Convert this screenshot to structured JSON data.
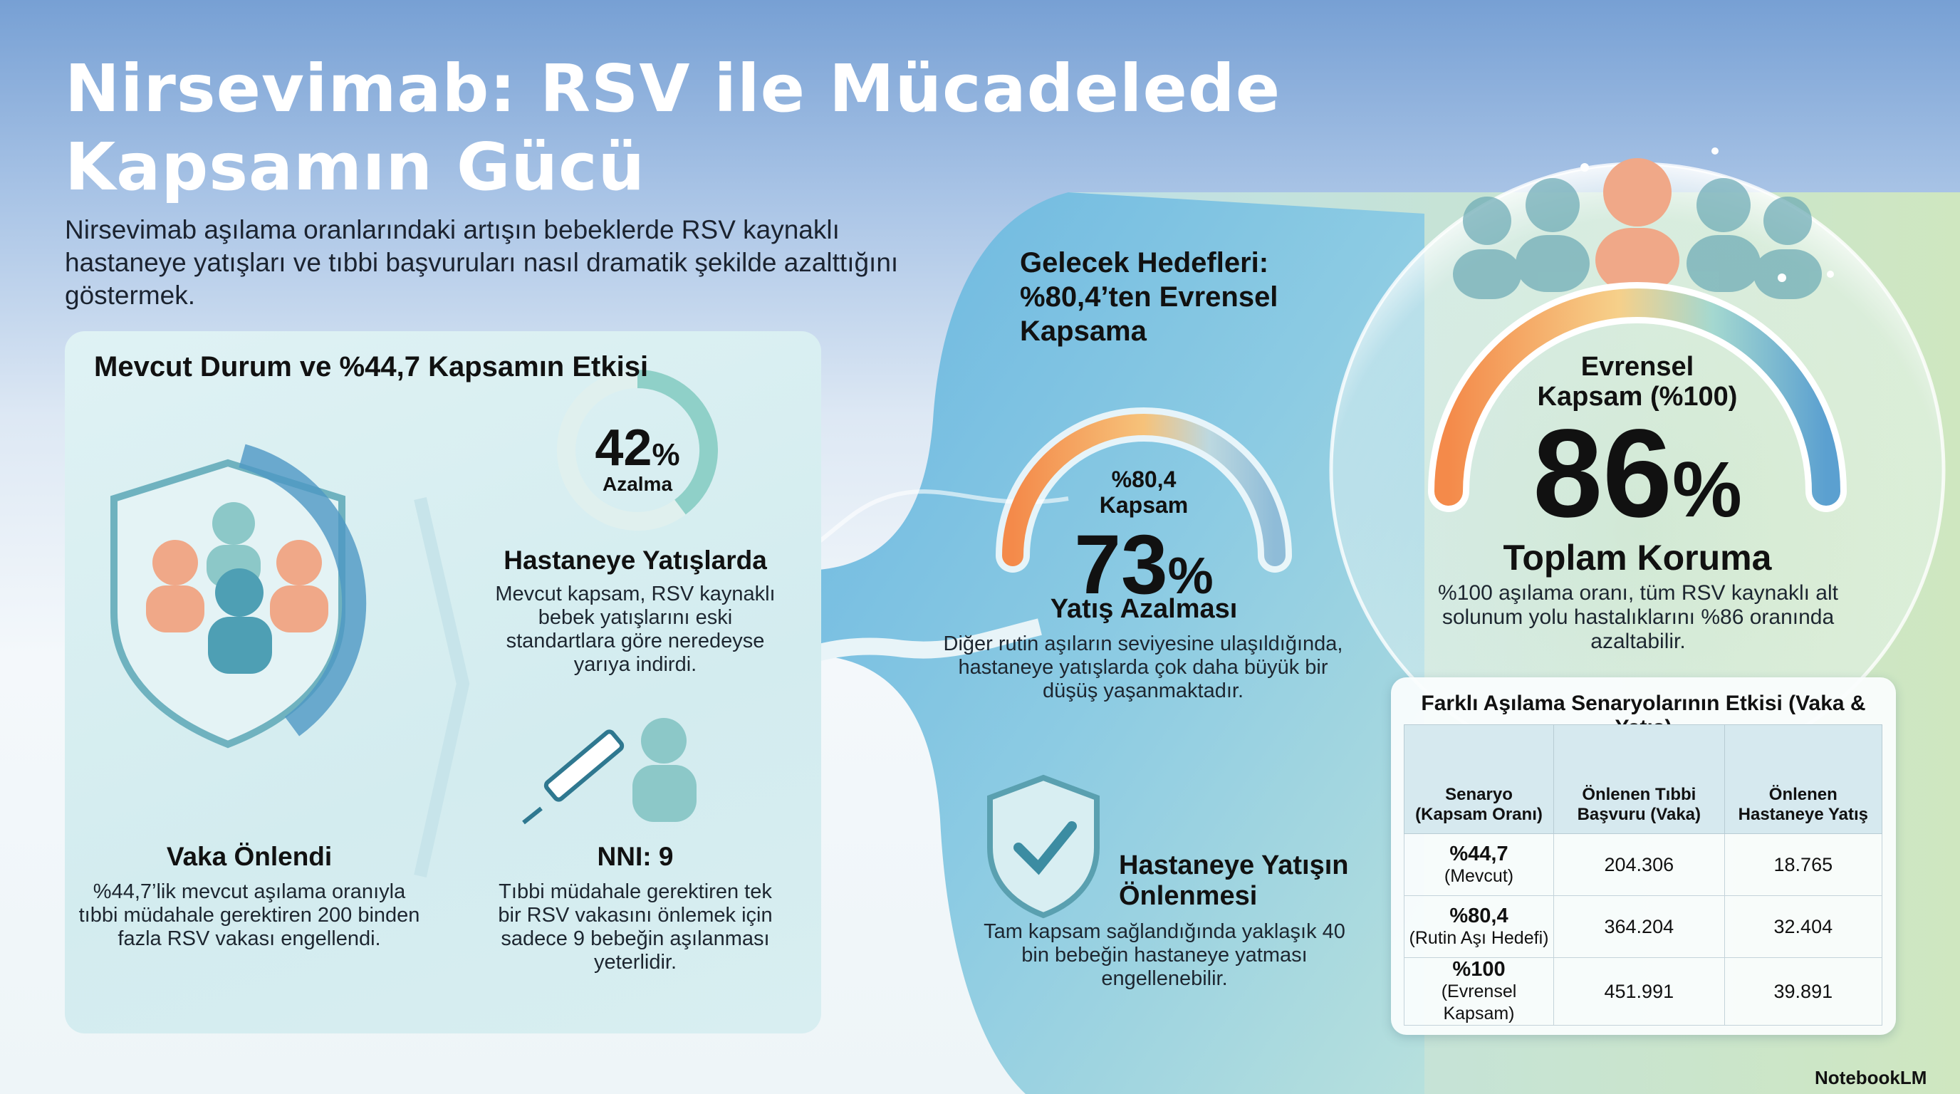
{
  "header": {
    "title_line1": "Nirsevimab: RSV ile Mücadelede",
    "title_line2": "Kapsamın Gücü",
    "subtitle": "Nirsevimab aşılama oranlarındaki artışın bebeklerde RSV kaynaklı hastaneye yatışları ve tıbbi başvuruları nasıl dramatik şekilde azalttığını göstermek."
  },
  "current": {
    "title": "Mevcut Durum ve %44,7 Kapsamın Etkisi",
    "ring": {
      "value": "42",
      "unit": "%",
      "label": "Azalma"
    },
    "hospital": {
      "title": "Hastaneye Yatışlarda",
      "text": "Mevcut kapsam, RSV kaynaklı bebek yatışlarını eski standartlara göre neredeyse yarıya indirdi."
    },
    "cases": {
      "title": "Vaka Önlendi",
      "text": "%44,7’lik mevcut aşılama oranıyla tıbbi müdahale gerektiren 200 binden fazla RSV vakası engellendi."
    },
    "nni": {
      "title": "NNI: 9",
      "text": "Tıbbi müdahale gerektiren tek bir RSV vakasını önlemek için sadece 9 bebeğin aşılanması yeterlidir."
    }
  },
  "future": {
    "title": "Gelecek Hedefleri: %80,4’ten Evrensel Kapsama",
    "gauge": {
      "label_line1": "%80,4",
      "label_line2": "Kapsam",
      "value": "73",
      "unit": "%",
      "caption": "Yatış Azalması",
      "text": "Diğer rutin aşıların seviyesine ulaşıldığında, hastaneye yatışlarda çok daha büyük bir düşüş yaşanmaktadır."
    },
    "prevention": {
      "title": "Hastaneye Yatışın Önlenmesi",
      "text": "Tam kapsam sağlandığında yaklaşık 40 bin bebeğin hastaneye yatması engellenebilir."
    }
  },
  "universal": {
    "label_line1": "Evrensel",
    "label_line2": "Kapsam (%100)",
    "value": "86",
    "unit": "%",
    "caption": "Toplam Koruma",
    "text": "%100 aşılama oranı, tüm RSV kaynaklı alt solunum yolu hastalıklarını %86 oranında azaltabilir."
  },
  "table": {
    "title": "Farklı Aşılama Senaryolarının Etkisi (Vaka & Yatış)",
    "headers": [
      "Senaryo (Kapsam Oranı)",
      "Önlenen Tıbbi Başvuru (Vaka)",
      "Önlenen Hastaneye Yatış"
    ],
    "rows": [
      [
        {
          "main": "%44,7",
          "sub": "(Mevcut)"
        },
        "204.306",
        "18.765"
      ],
      [
        {
          "main": "%80,4",
          "sub": "(Rutin Aşı Hedefi)"
        },
        "364.204",
        "32.404"
      ],
      [
        {
          "main": "%100",
          "sub": "(Evrensel Kapsam)"
        },
        "451.991",
        "39.891"
      ]
    ]
  },
  "footer": {
    "brand": "NotebookLM"
  }
}
